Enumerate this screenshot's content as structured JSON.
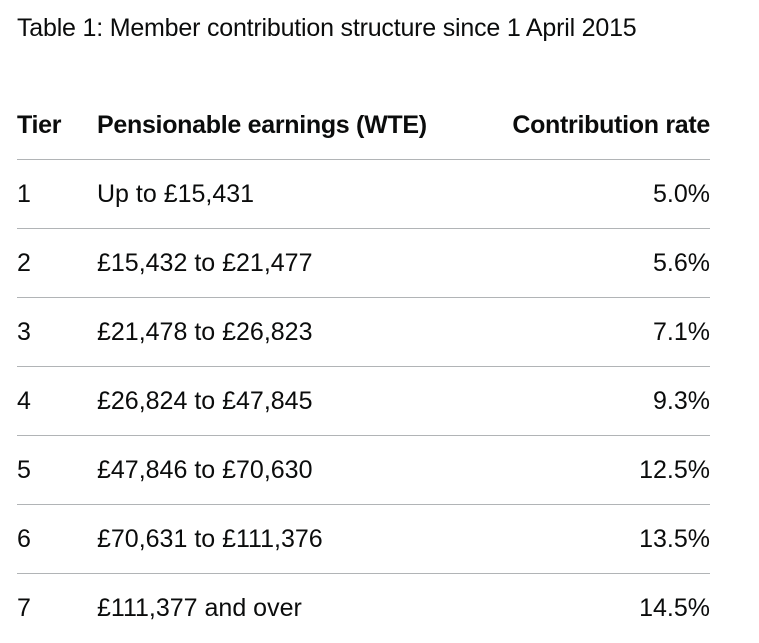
{
  "caption": "Table 1: Member contribution structure since 1 April 2015",
  "headers": {
    "tier": "Tier",
    "earnings": "Pensionable earnings (WTE)",
    "rate": "Contribution rate"
  },
  "rows": [
    {
      "tier": "1",
      "earnings": "Up to £15,431",
      "rate": "5.0%"
    },
    {
      "tier": "2",
      "earnings": "£15,432 to £21,477",
      "rate": "5.6%"
    },
    {
      "tier": "3",
      "earnings": "£21,478 to £26,823",
      "rate": "7.1%"
    },
    {
      "tier": "4",
      "earnings": "£26,824 to £47,845",
      "rate": "9.3%"
    },
    {
      "tier": "5",
      "earnings": "£47,846 to £70,630",
      "rate": "12.5%"
    },
    {
      "tier": "6",
      "earnings": "£70,631 to £111,376",
      "rate": "13.5%"
    },
    {
      "tier": "7",
      "earnings": "£111,377 and over",
      "rate": "14.5%"
    }
  ]
}
